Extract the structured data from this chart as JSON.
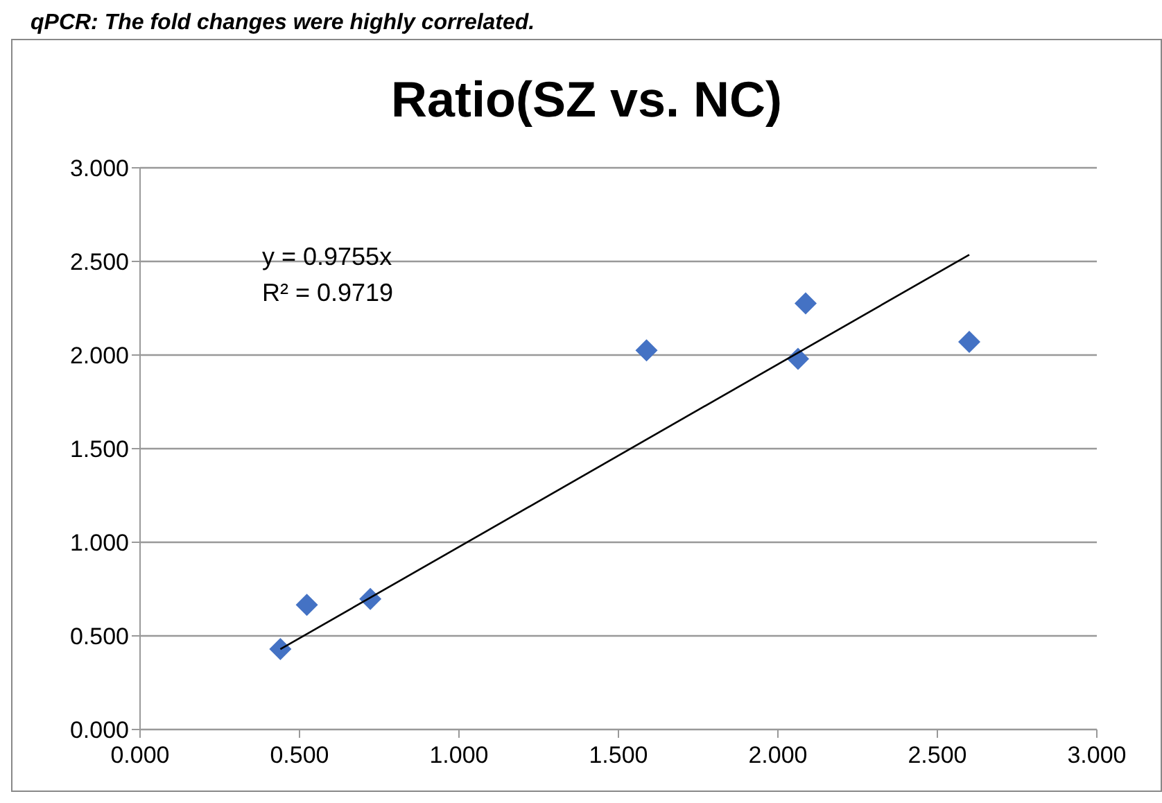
{
  "chart_data": {
    "type": "scatter",
    "title": "Ratio(SZ vs. NC)",
    "marker": "diamond",
    "grid": "y",
    "xlim": [
      0,
      3
    ],
    "xticks": [
      {
        "value": 0,
        "label": "0.000"
      },
      {
        "value": 0.5,
        "label": "0.500"
      },
      {
        "value": 1,
        "label": "1.000"
      },
      {
        "value": 1.5,
        "label": "1.500"
      },
      {
        "value": 2,
        "label": "2.000"
      },
      {
        "value": 2.5,
        "label": "2.500"
      },
      {
        "value": 3,
        "label": "3.000"
      }
    ],
    "ylim": [
      0,
      3
    ],
    "yticks": [
      {
        "value": 0,
        "label": "0.000"
      },
      {
        "value": 0.5,
        "label": "0.500"
      },
      {
        "value": 1,
        "label": "1.000"
      },
      {
        "value": 1.5,
        "label": "1.500"
      },
      {
        "value": 2,
        "label": "2.000"
      },
      {
        "value": 2.5,
        "label": "2.500"
      },
      {
        "value": 3,
        "label": "3.000"
      }
    ],
    "annotations": [
      "qPCR: The fold changes were highly correlated.",
      "y = 0.9755x",
      "R² = 0.9719"
    ],
    "series": [
      {
        "color": "#4472c4",
        "x": [
          0.44,
          0.523,
          0.722,
          1.588,
          2.063,
          2.087,
          2.6
        ],
        "values": [
          0.43,
          0.666,
          0.697,
          2.025,
          1.98,
          2.276,
          2.07
        ]
      },
      {
        "type": "line",
        "color": "#000000",
        "marker": "none",
        "x": [
          0.44,
          2.6
        ],
        "values": [
          0.429,
          2.536
        ]
      }
    ]
  }
}
